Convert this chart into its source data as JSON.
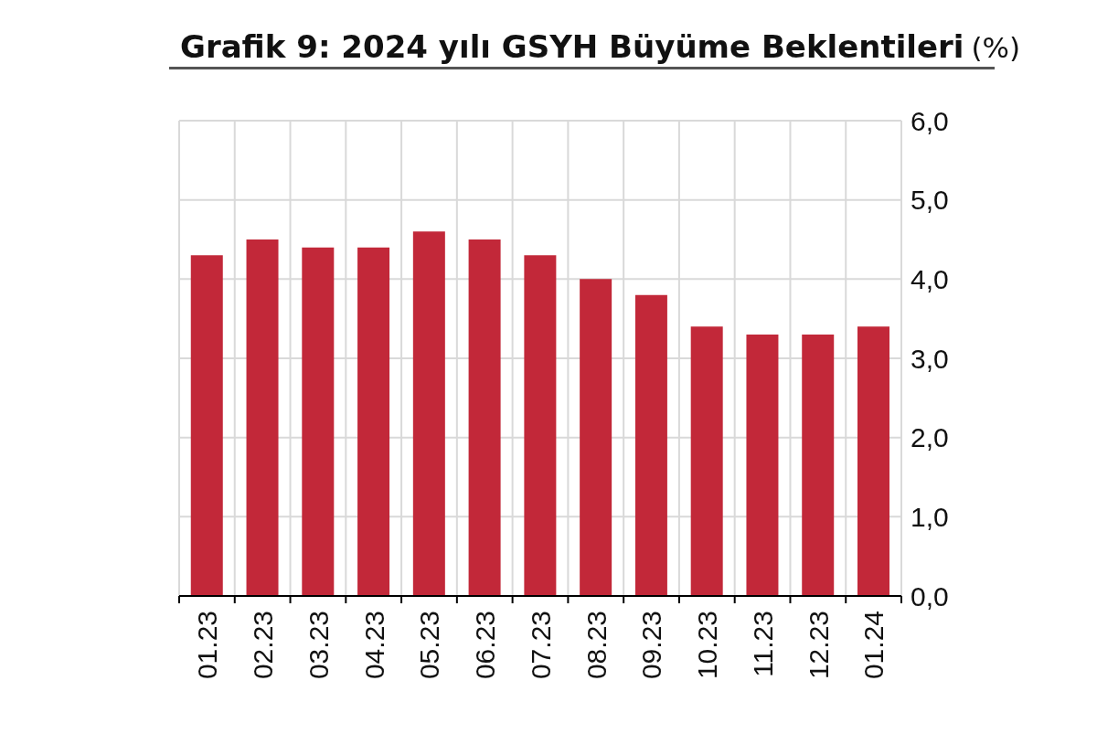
{
  "chart_data": {
    "type": "bar",
    "title": "Grafik 9: 2024 yılı GSYH Büyüme Beklentileri",
    "ylabel": "(%)",
    "categories": [
      "01.23",
      "02.23",
      "03.23",
      "04.23",
      "05.23",
      "06.23",
      "07.23",
      "08.23",
      "09.23",
      "10.23",
      "11.23",
      "12.23",
      "01.24"
    ],
    "values": [
      4.3,
      4.5,
      4.4,
      4.4,
      4.6,
      4.5,
      4.3,
      4.0,
      3.8,
      3.4,
      3.3,
      3.3,
      3.4
    ],
    "color": "#c22839",
    "ylim": [
      0,
      6
    ],
    "yticks": [
      {
        "value": 0,
        "label": "0,0"
      },
      {
        "value": 1,
        "label": "1,0"
      },
      {
        "value": 2,
        "label": "2,0"
      },
      {
        "value": 3,
        "label": "3,0"
      },
      {
        "value": 4,
        "label": "4,0"
      },
      {
        "value": 5,
        "label": "5,0"
      },
      {
        "value": 6,
        "label": "6,0"
      }
    ],
    "grid": true
  }
}
